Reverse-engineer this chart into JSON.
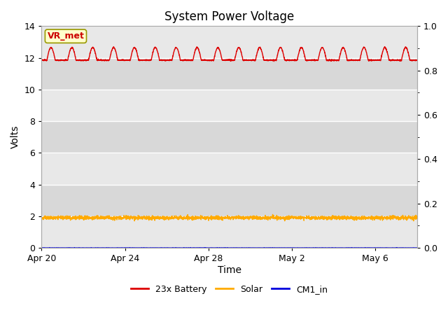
{
  "title": "System Power Voltage",
  "xlabel": "Time",
  "ylabel": "Volts",
  "ylim_left": [
    0,
    14
  ],
  "ylim_right": [
    0.0,
    1.0
  ],
  "yticks_left": [
    0,
    2,
    4,
    6,
    8,
    10,
    12,
    14
  ],
  "yticks_right": [
    0.0,
    0.2,
    0.4,
    0.6,
    0.8,
    1.0
  ],
  "figure_bg_color": "#ffffff",
  "plot_bg_color": "#e8e8e8",
  "grid_color": "#ffffff",
  "band_colors": [
    "#e0e0e0",
    "#ebebeb"
  ],
  "title_fontsize": 12,
  "axis_label_fontsize": 10,
  "tick_fontsize": 9,
  "legend_fontsize": 9,
  "annotation_text": "VR_met",
  "annotation_color": "#cc0000",
  "annotation_bg": "#ffffcc",
  "annotation_border": "#999900",
  "battery_color": "#dd0000",
  "solar_color": "#ffaa00",
  "cm1_color": "#0000dd",
  "x_tick_labels": [
    "Apr 20",
    "Apr 24",
    "Apr 28",
    "May 2",
    "May 6"
  ],
  "x_tick_positions": [
    0,
    4,
    8,
    12,
    16
  ],
  "total_days": 18,
  "battery_base": 11.85,
  "battery_peak": 12.65,
  "solar_base": 1.9,
  "cm1_base": 0.0
}
